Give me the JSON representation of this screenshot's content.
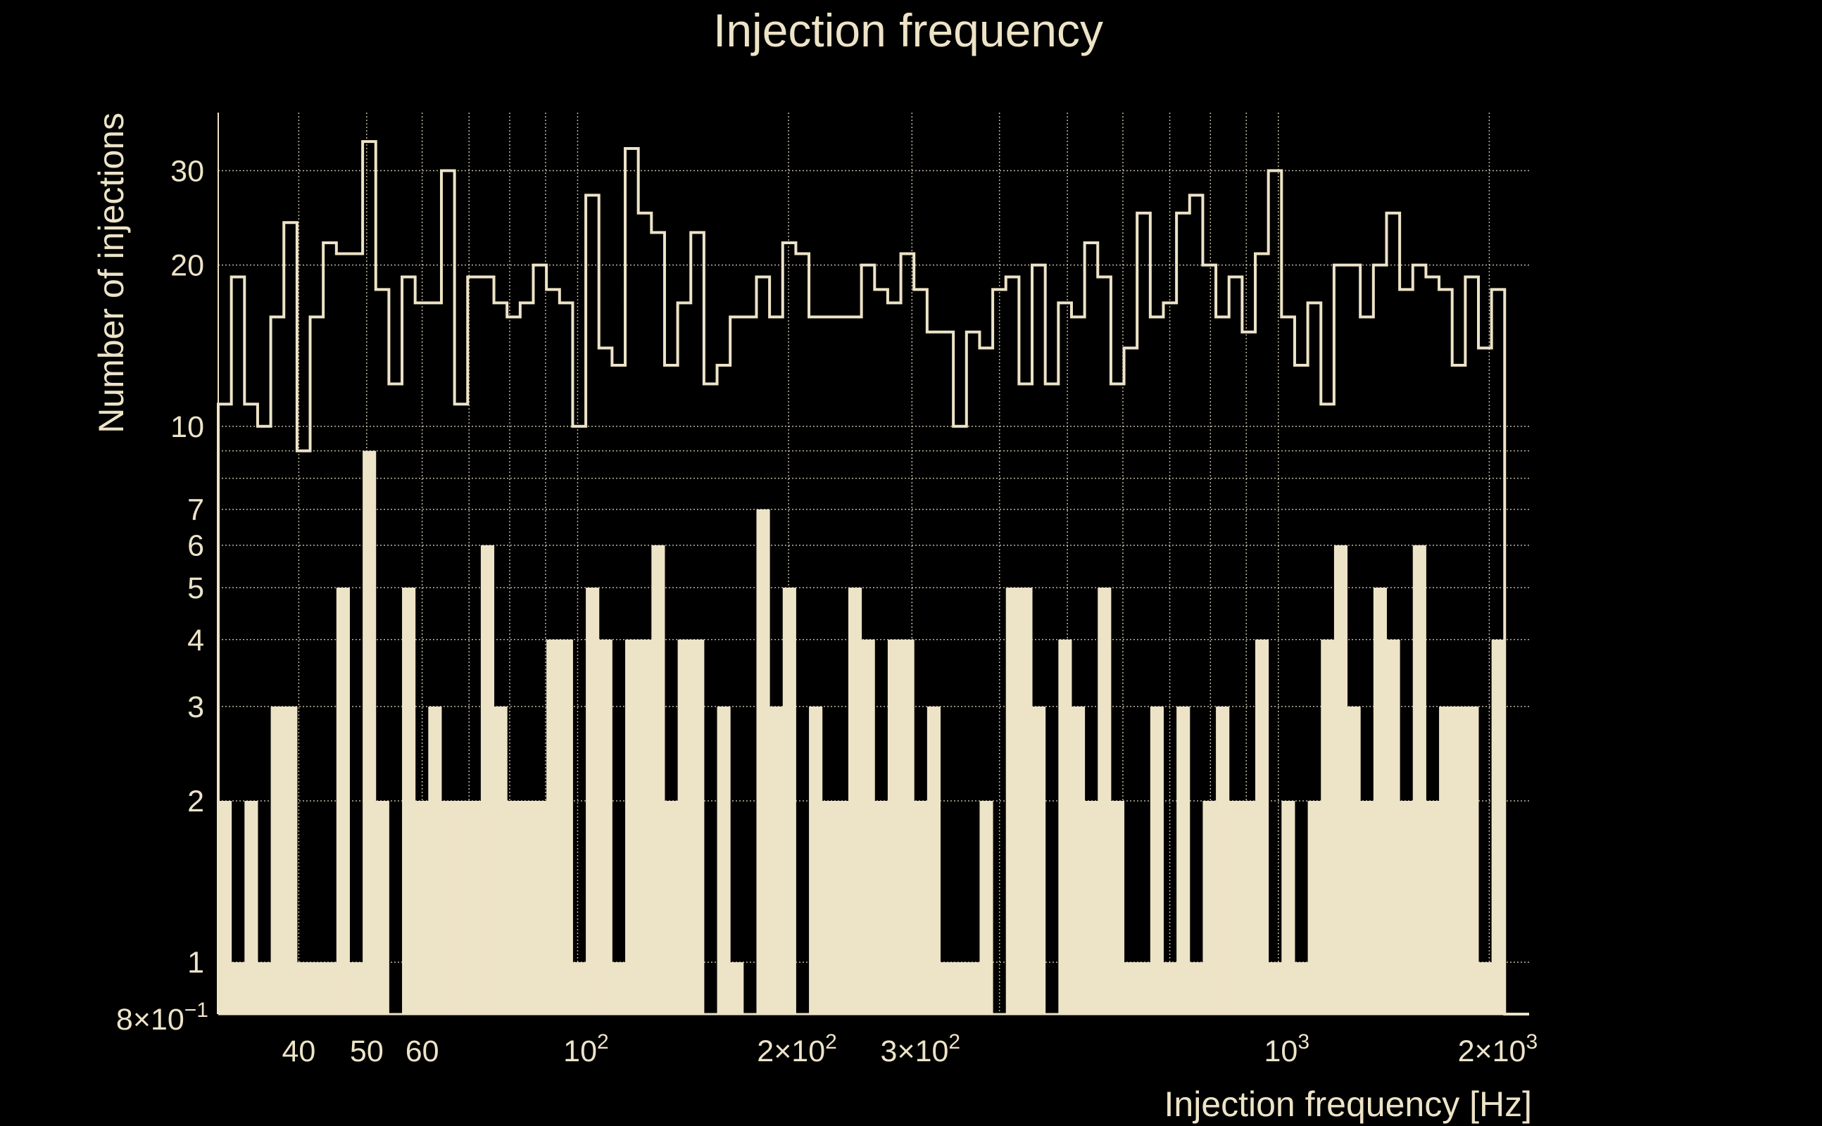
{
  "colors": {
    "background": "#000000",
    "foreground": "#ede3c7",
    "grid": "#ede3c7"
  },
  "chart_data": {
    "type": "bar",
    "title": "Injection frequency",
    "xlabel": "Injection frequency [Hz]",
    "ylabel": "Number of injections",
    "xscale": "log",
    "yscale": "log",
    "xlim": [
      30.7,
      2280
    ],
    "ylim": [
      0.8,
      38.5
    ],
    "grid": true,
    "bins": {
      "count": 98,
      "range": [
        30.7,
        2104
      ],
      "spacing": "log-uniform"
    },
    "x_ticks": [
      {
        "value": 40,
        "label": "40"
      },
      {
        "value": 50,
        "label": "50"
      },
      {
        "value": 60,
        "label": "60"
      },
      {
        "value": 100,
        "label": "10",
        "sup": "2"
      },
      {
        "value": 200,
        "label": "2×10",
        "sup": "2"
      },
      {
        "value": 300,
        "label": "3×10",
        "sup": "2"
      },
      {
        "value": 1000,
        "label": "10",
        "sup": "3"
      },
      {
        "value": 2000,
        "label": "2×10",
        "sup": "3"
      }
    ],
    "y_ticks": [
      {
        "value": 30,
        "label": "30"
      },
      {
        "value": 20,
        "label": "20"
      },
      {
        "value": 10,
        "label": "10"
      },
      {
        "value": 7,
        "label": "7"
      },
      {
        "value": 6,
        "label": "6"
      },
      {
        "value": 5,
        "label": "5"
      },
      {
        "value": 4,
        "label": "4"
      },
      {
        "value": 3,
        "label": "3"
      },
      {
        "value": 2,
        "label": "2"
      },
      {
        "value": 1,
        "label": "1"
      },
      {
        "value": 0.8,
        "label": "8×10",
        "sup": "−1"
      }
    ],
    "series": [
      {
        "name": "outline histogram",
        "style": "step",
        "values": [
          11,
          19,
          11,
          10,
          16,
          24,
          9,
          16,
          22,
          21,
          21,
          34,
          18,
          12,
          19,
          17,
          17,
          30,
          11,
          19,
          19,
          17,
          16,
          17,
          20,
          18,
          17,
          10,
          27,
          14,
          13,
          33,
          25,
          23,
          13,
          17,
          23,
          12,
          13,
          16,
          16,
          19,
          16,
          22,
          21,
          16,
          16,
          16,
          16,
          20,
          18,
          17,
          21,
          18,
          15,
          15,
          10,
          15,
          14,
          18,
          19,
          12,
          20,
          12,
          17,
          16,
          22,
          19,
          12,
          14,
          25,
          16,
          17,
          25,
          27,
          20,
          16,
          19,
          15,
          21,
          30,
          16,
          13,
          17,
          11,
          20,
          20,
          16,
          20,
          25,
          18,
          20,
          19,
          18,
          13,
          19,
          14,
          18
        ]
      },
      {
        "name": "filled histogram",
        "style": "filled",
        "values": [
          2,
          1,
          2,
          1,
          3,
          3,
          1,
          1,
          1,
          5,
          1,
          9,
          2,
          0,
          5,
          2,
          3,
          2,
          2,
          2,
          6,
          3,
          2,
          2,
          2,
          4,
          4,
          1,
          5,
          4,
          1,
          4,
          4,
          6,
          2,
          4,
          4,
          0,
          3,
          1,
          0,
          7,
          3,
          5,
          0,
          3,
          2,
          2,
          5,
          4,
          2,
          4,
          4,
          2,
          3,
          1,
          1,
          1,
          2,
          0,
          5,
          5,
          3,
          0,
          4,
          3,
          2,
          5,
          2,
          1,
          1,
          3,
          1,
          3,
          1,
          2,
          3,
          2,
          2,
          4,
          1,
          2,
          1,
          2,
          4,
          6,
          3,
          2,
          5,
          4,
          2,
          6,
          2,
          3,
          3,
          3,
          1,
          4
        ]
      }
    ]
  }
}
